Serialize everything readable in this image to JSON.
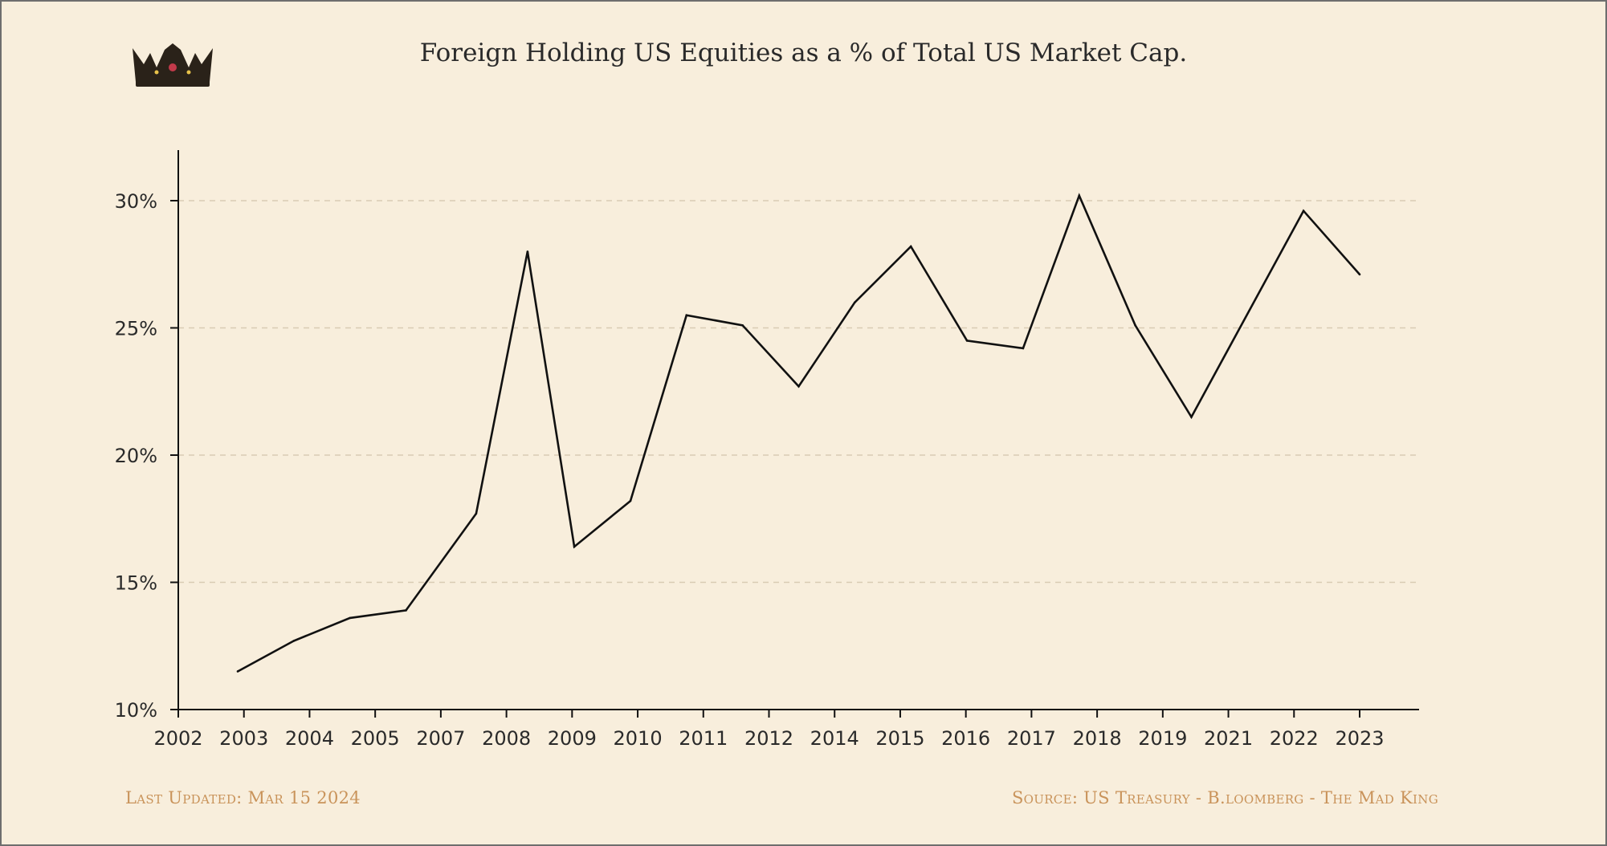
{
  "chart_data": {
    "type": "line",
    "title": "Foreign Holding US Equities as a % of Total US Market Cap.",
    "xlabel": "",
    "ylabel": "",
    "x_tick_labels": [
      "2002",
      "2003",
      "2004",
      "2005",
      "2007",
      "2008",
      "2009",
      "2010",
      "2011",
      "2012",
      "2014",
      "2015",
      "2016",
      "2017",
      "2018",
      "2019",
      "2021",
      "2022",
      "2023"
    ],
    "y_tick_labels": [
      "10%",
      "15%",
      "20%",
      "25%",
      "30%"
    ],
    "y_ticks": [
      10,
      15,
      20,
      25,
      30
    ],
    "ylim": [
      10,
      32
    ],
    "y_gridlines": true,
    "series": [
      {
        "color": "#111111",
        "points": [
          {
            "x": "2003-01",
            "y": 11.5
          },
          {
            "x": "2004-01",
            "y": 12.7
          },
          {
            "x": "2005-01",
            "y": 13.6
          },
          {
            "x": "2006-01",
            "y": 13.9
          },
          {
            "x": "2007-04",
            "y": 17.7
          },
          {
            "x": "2008-03",
            "y": 28.0
          },
          {
            "x": "2009-01",
            "y": 16.4
          },
          {
            "x": "2010-01",
            "y": 18.2
          },
          {
            "x": "2011-01",
            "y": 25.5
          },
          {
            "x": "2012-01",
            "y": 25.1
          },
          {
            "x": "2013-01",
            "y": 22.7
          },
          {
            "x": "2014-01",
            "y": 26.0
          },
          {
            "x": "2015-01",
            "y": 28.2
          },
          {
            "x": "2016-01",
            "y": 24.5
          },
          {
            "x": "2017-01",
            "y": 24.2
          },
          {
            "x": "2018-01",
            "y": 30.2
          },
          {
            "x": "2019-01",
            "y": 25.1
          },
          {
            "x": "2020-01",
            "y": 21.5
          },
          {
            "x": "2022-01",
            "y": 29.6
          },
          {
            "x": "2023-01",
            "y": 27.1
          }
        ]
      }
    ]
  },
  "logo": {
    "icon": "crown-icon"
  },
  "footer": {
    "updated": "Last Updated: Mar 15 2024",
    "source": "Source: US Treasury  - B.loomberg - The Mad King"
  }
}
